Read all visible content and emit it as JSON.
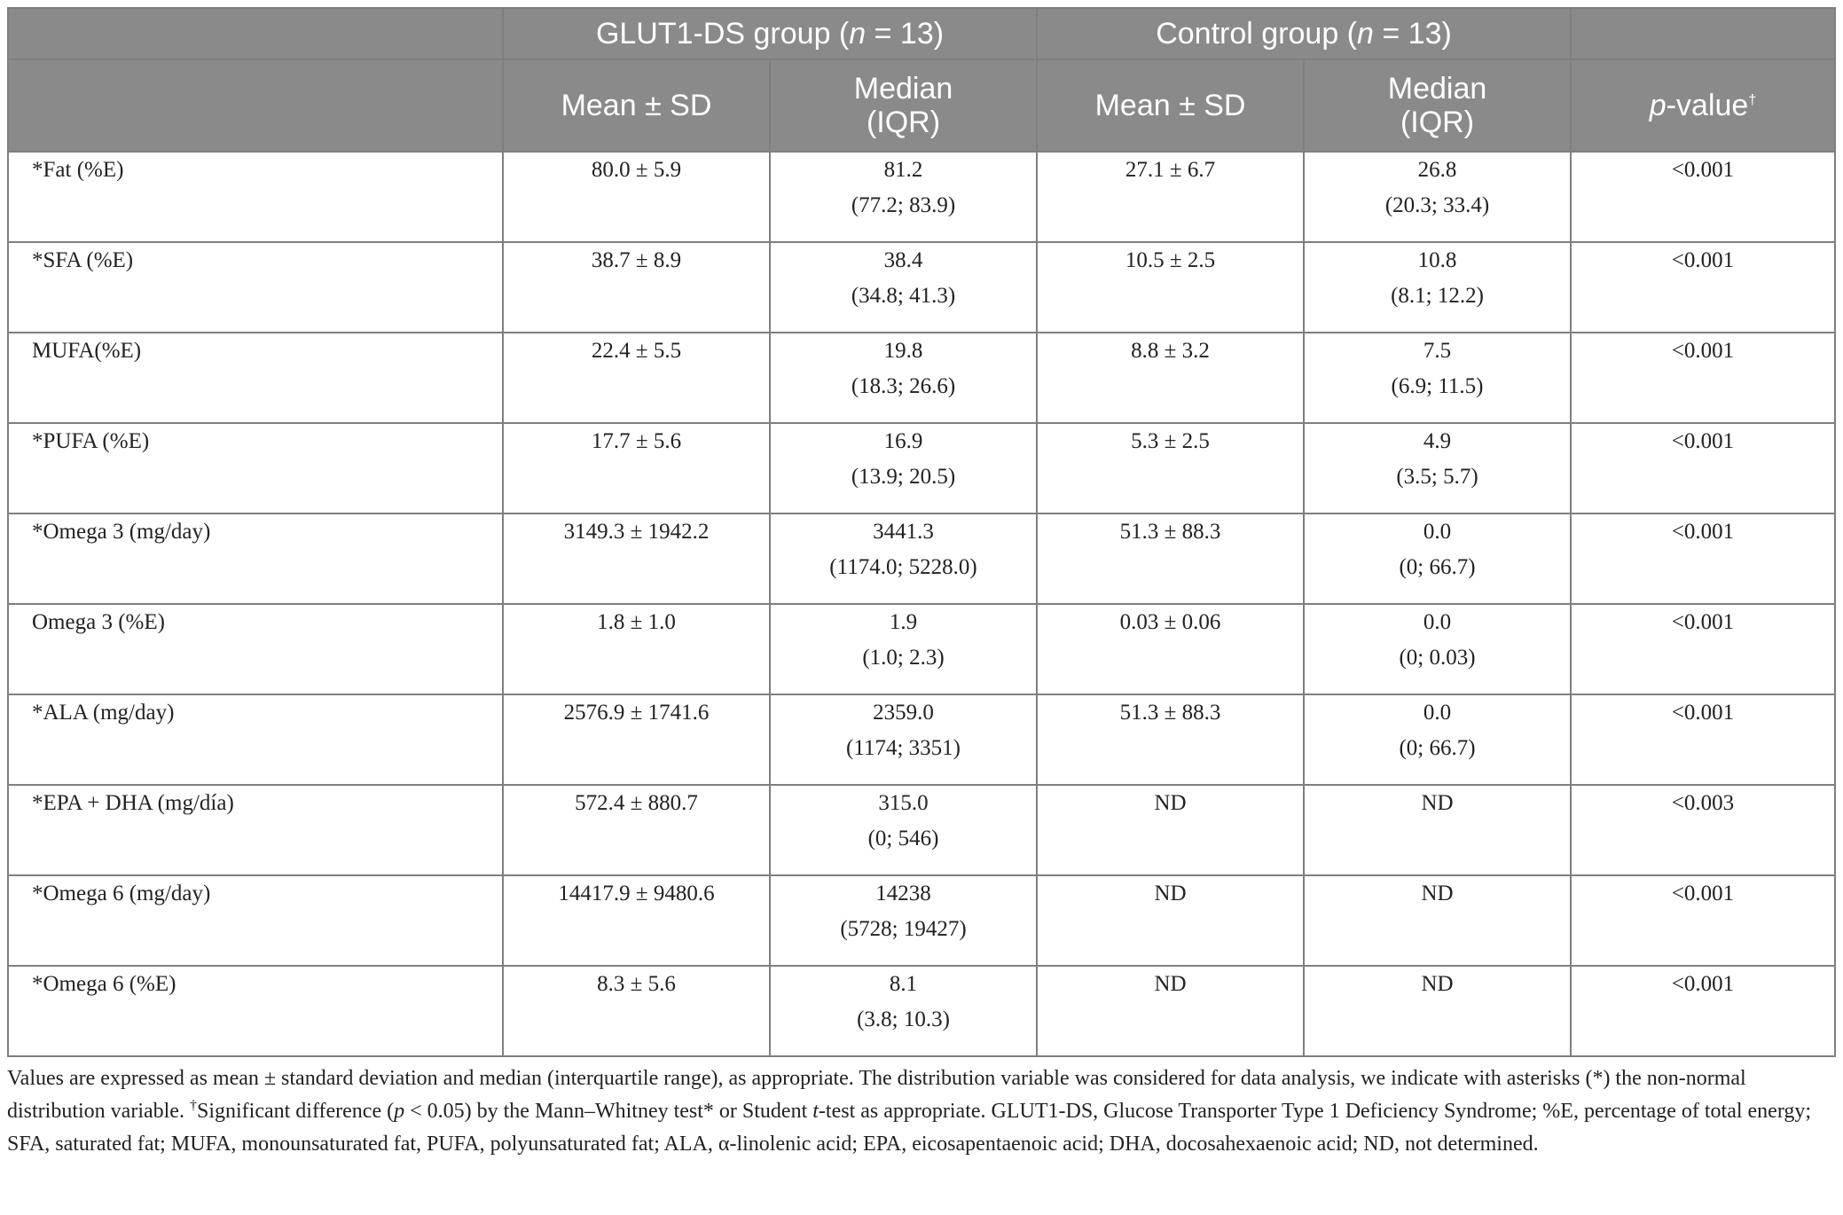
{
  "header": {
    "group1": "GLUT1-DS group (",
    "group1_n": "n",
    "group1_tail": " = 13)",
    "group2": "Control group (",
    "group2_n": "n",
    "group2_tail": " = 13)",
    "mean_sd": "Mean ± SD",
    "median_l1": "Median",
    "median_l2": "(IQR)",
    "pvalue_p": "p",
    "pvalue_tail": "-value",
    "pvalue_sup": "†"
  },
  "rows": [
    {
      "label": "*Fat (%E)",
      "g1_mean": "80.0 ± 5.9",
      "g1_med": "81.2",
      "g1_iqr": "(77.2; 83.9)",
      "g2_mean": "27.1 ± 6.7",
      "g2_med": "26.8",
      "g2_iqr": "(20.3; 33.4)",
      "p": "<0.001"
    },
    {
      "label": "*SFA (%E)",
      "g1_mean": "38.7 ± 8.9",
      "g1_med": "38.4",
      "g1_iqr": "(34.8; 41.3)",
      "g2_mean": "10.5 ± 2.5",
      "g2_med": "10.8",
      "g2_iqr": "(8.1; 12.2)",
      "p": "<0.001"
    },
    {
      "label": "MUFA(%E)",
      "g1_mean": "22.4 ± 5.5",
      "g1_med": "19.8",
      "g1_iqr": "(18.3; 26.6)",
      "g2_mean": "8.8 ± 3.2",
      "g2_med": "7.5",
      "g2_iqr": "(6.9; 11.5)",
      "p": "<0.001"
    },
    {
      "label": "*PUFA (%E)",
      "g1_mean": "17.7 ± 5.6",
      "g1_med": "16.9",
      "g1_iqr": "(13.9; 20.5)",
      "g2_mean": "5.3 ± 2.5",
      "g2_med": "4.9",
      "g2_iqr": "(3.5; 5.7)",
      "p": "<0.001"
    },
    {
      "label": "*Omega 3 (mg/day)",
      "g1_mean": "3149.3 ± 1942.2",
      "g1_med": "3441.3",
      "g1_iqr": "(1174.0; 5228.0)",
      "g2_mean": "51.3 ± 88.3",
      "g2_med": "0.0",
      "g2_iqr": "(0; 66.7)",
      "p": "<0.001"
    },
    {
      "label": "Omega 3 (%E)",
      "g1_mean": "1.8 ± 1.0",
      "g1_med": "1.9",
      "g1_iqr": "(1.0; 2.3)",
      "g2_mean": "0.03 ± 0.06",
      "g2_med": "0.0",
      "g2_iqr": "(0; 0.03)",
      "p": "<0.001"
    },
    {
      "label": "*ALA (mg/day)",
      "g1_mean": "2576.9 ± 1741.6",
      "g1_med": "2359.0",
      "g1_iqr": "(1174; 3351)",
      "g2_mean": "51.3 ± 88.3",
      "g2_med": "0.0",
      "g2_iqr": "(0; 66.7)",
      "p": "<0.001"
    },
    {
      "label": "*EPA + DHA (mg/día)",
      "g1_mean": "572.4 ± 880.7",
      "g1_med": "315.0",
      "g1_iqr": "(0; 546)",
      "g2_mean": "ND",
      "g2_med": "ND",
      "g2_iqr": "",
      "p": "<0.003"
    },
    {
      "label": "*Omega 6 (mg/day)",
      "g1_mean": "14417.9 ± 9480.6",
      "g1_med": "14238",
      "g1_iqr": "(5728; 19427)",
      "g2_mean": "ND",
      "g2_med": "ND",
      "g2_iqr": "",
      "p": "<0.001"
    },
    {
      "label": "*Omega 6 (%E)",
      "g1_mean": "8.3 ± 5.6",
      "g1_med": "8.1",
      "g1_iqr": "(3.8; 10.3)",
      "g2_mean": "ND",
      "g2_med": "ND",
      "g2_iqr": "",
      "p": "<0.001"
    }
  ],
  "footnote": {
    "part1": "Values are expressed as mean ± standard deviation and median (interquartile range), as appropriate. The distribution variable was considered for data analysis, we indicate with asterisks (*) the non-normal distribution variable. ",
    "dagger": "†",
    "part2": "Significant difference (",
    "p_italic": "p",
    "part3": " < 0.05) by the Mann–Whitney test* or Student ",
    "t_italic": "t",
    "part4": "-test as appropriate. GLUT1-DS, Glucose Transporter Type 1 Deficiency Syndrome; %E, percentage of total energy; SFA, saturated fat; MUFA, monounsaturated fat, PUFA, polyunsaturated fat; ALA, α-linolenic acid; EPA, eicosapentaenoic acid; DHA, docosahexaenoic acid; ND, not determined."
  }
}
